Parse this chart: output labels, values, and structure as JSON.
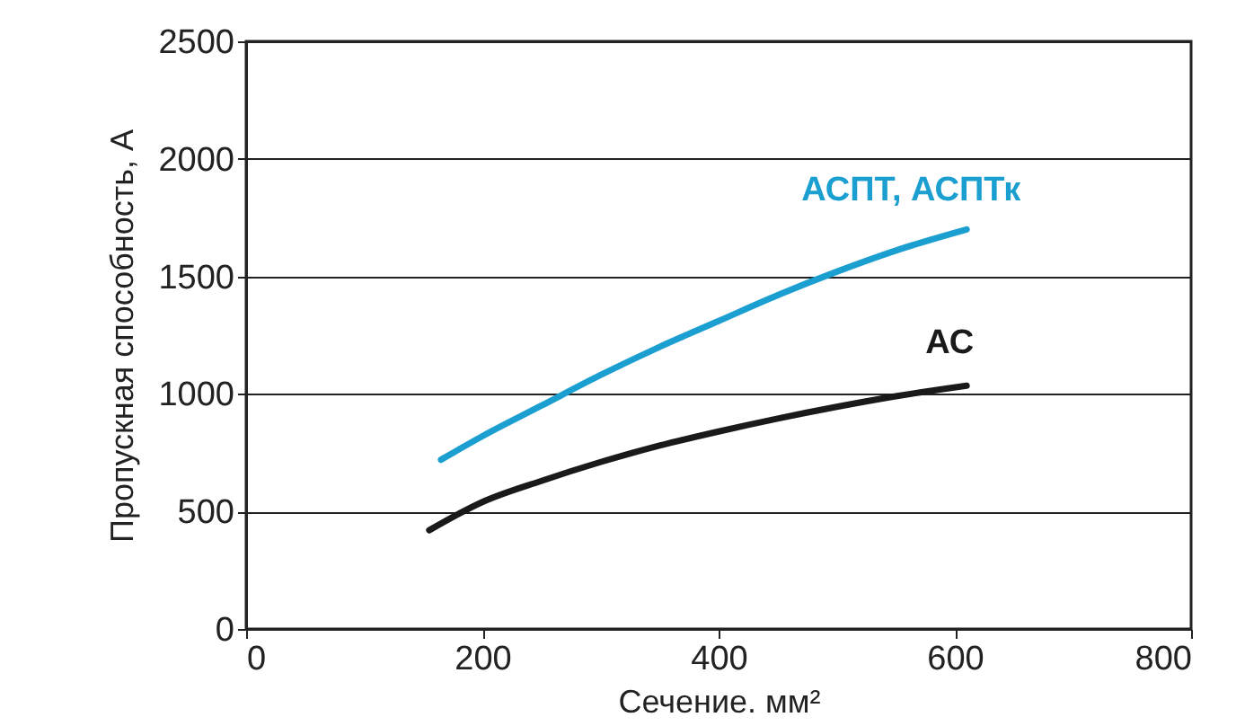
{
  "chart_data": {
    "type": "line",
    "xlabel": "Сечение. мм²",
    "ylabel": "Пропускная способность, А",
    "xlim": [
      0,
      800
    ],
    "xticks": [
      0,
      200,
      400,
      600,
      800
    ],
    "ylim": [
      0,
      2500
    ],
    "yticks": [
      0,
      500,
      1000,
      1500,
      2000,
      2500
    ],
    "grid": "y",
    "legend": false,
    "series": [
      {
        "name": "АСПТ, АСПТк",
        "color": "#1a9fd0",
        "x": [
          165,
          200,
          250,
          300,
          350,
          400,
          450,
          500,
          550,
          610
        ],
        "values": [
          720,
          820,
          950,
          1080,
          1200,
          1310,
          1420,
          1520,
          1610,
          1700
        ]
      },
      {
        "name": "АС",
        "color": "#1a1a1a",
        "x": [
          155,
          200,
          250,
          300,
          350,
          400,
          450,
          500,
          550,
          610
        ],
        "values": [
          420,
          540,
          630,
          710,
          780,
          840,
          895,
          945,
          990,
          1035
        ]
      }
    ]
  }
}
